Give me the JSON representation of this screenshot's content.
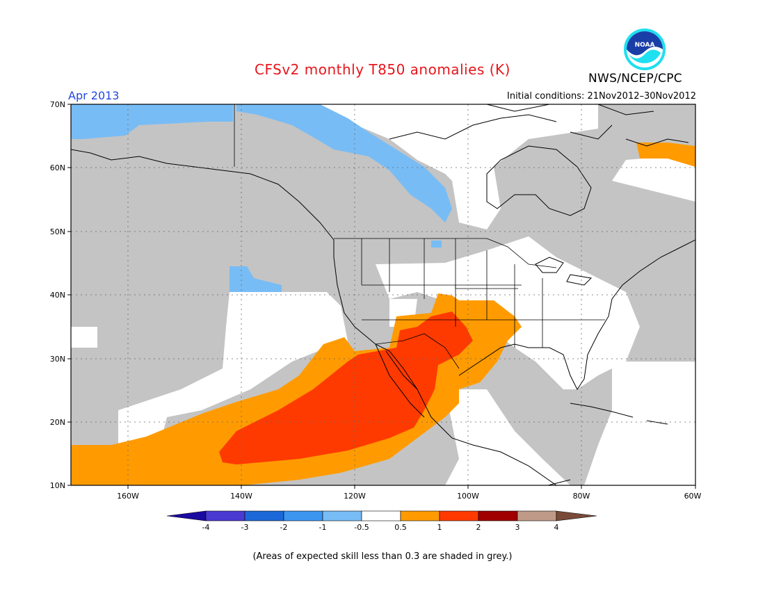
{
  "header": {
    "title": "CFSv2 monthly T850 anomalies (K)",
    "month": "Apr 2013",
    "initial_conditions": "Initial conditions: 21Nov2012–30Nov2012",
    "agency": "NWS/NCEP/CPC",
    "logo_text": "NOAA"
  },
  "map": {
    "lon_range": [
      -170,
      -60
    ],
    "lat_range": [
      10,
      70
    ],
    "lat_ticks": [
      "10N",
      "20N",
      "30N",
      "40N",
      "50N",
      "60N",
      "70N"
    ],
    "lon_ticks": [
      "160W",
      "140W",
      "120W",
      "100W",
      "80W",
      "60W"
    ]
  },
  "legend": {
    "labels": [
      "-4",
      "-3",
      "-2",
      "-1",
      "-0.5",
      "0.5",
      "1",
      "2",
      "3",
      "4"
    ],
    "colors": [
      "#1b0aa0",
      "#4a3ad2",
      "#1c68d8",
      "#3c96f0",
      "#78bcf5",
      "#ffffff",
      "#ff9b00",
      "#ff3a00",
      "#a00000",
      "#c09a88",
      "#7a4a38"
    ]
  },
  "colors": {
    "grey_skill": "#c4c4c4",
    "light_blue": "#78bcf5",
    "orange": "#ff9b00",
    "red": "#ff3a00"
  },
  "footer": {
    "note": "(Areas of expected skill less than 0.3 are shaded in grey.)"
  }
}
